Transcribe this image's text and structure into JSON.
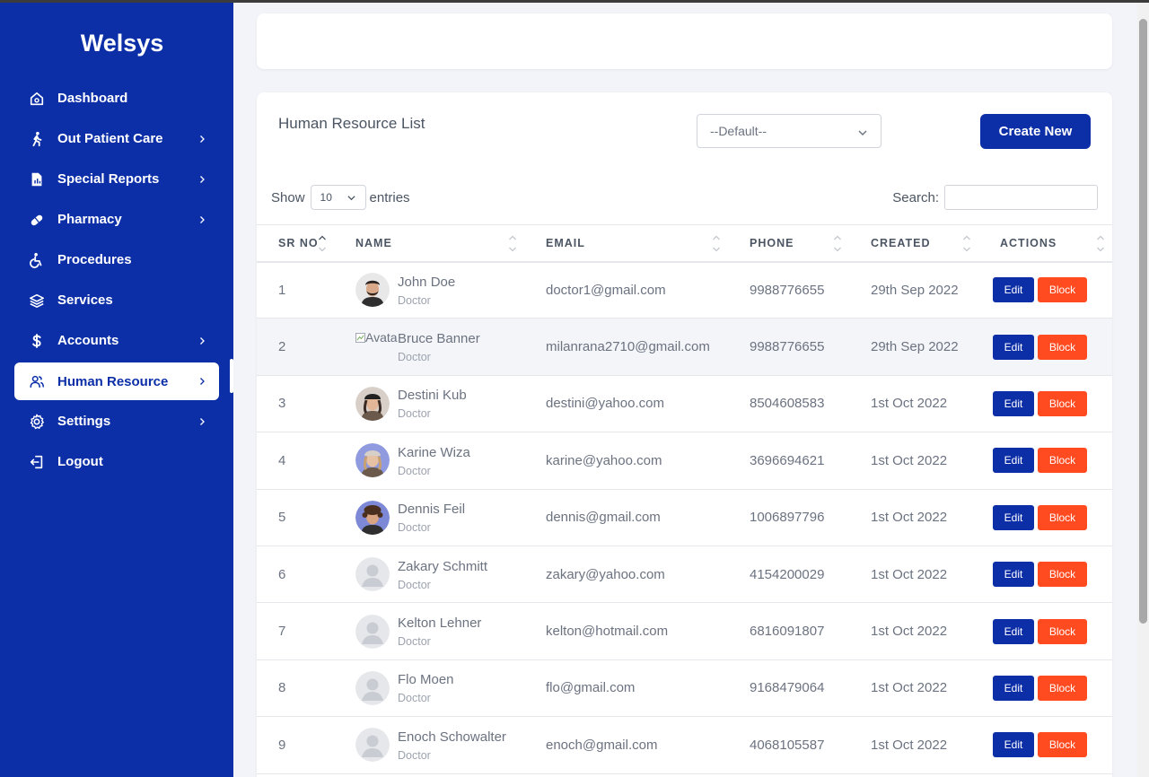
{
  "brand": "Welsys",
  "sidebar": {
    "items": [
      {
        "label": "Dashboard",
        "icon": "home-icon",
        "chevron": false
      },
      {
        "label": "Out Patient Care",
        "icon": "walking-person-icon",
        "chevron": true
      },
      {
        "label": "Special Reports",
        "icon": "report-file-icon",
        "chevron": true
      },
      {
        "label": "Pharmacy",
        "icon": "pill-icon",
        "chevron": true
      },
      {
        "label": "Procedures",
        "icon": "wheelchair-icon",
        "chevron": false
      },
      {
        "label": "Services",
        "icon": "layers-icon",
        "chevron": false
      },
      {
        "label": "Accounts",
        "icon": "dollar-icon",
        "chevron": true
      },
      {
        "label": "Human Resource",
        "icon": "users-icon",
        "chevron": true,
        "active": true
      },
      {
        "label": "Settings",
        "icon": "gear-icon",
        "chevron": true
      },
      {
        "label": "Logout",
        "icon": "logout-icon",
        "chevron": false
      }
    ]
  },
  "main": {
    "title": "Human Resource List",
    "filter": {
      "value": "--Default--"
    },
    "create_label": "Create New",
    "show_label": "Show",
    "entries_value": "10",
    "entries_label": "entries",
    "search_label": "Search:",
    "columns": [
      "SR NO",
      "NAME",
      "EMAIL",
      "PHONE",
      "CREATED",
      "ACTIONS"
    ],
    "edit_label": "Edit",
    "block_label": "Block",
    "rows": [
      {
        "sr": "1",
        "name": "John Doe",
        "role": "Doctor",
        "email": "doctor1@gmail.com",
        "phone": "9988776655",
        "created": "29th Sep 2022",
        "avatar": "photo-man-beard"
      },
      {
        "sr": "2",
        "name": "Bruce Banner",
        "role": "Doctor",
        "email": "milanrana2710@gmail.com",
        "phone": "9988776655",
        "created": "29th Sep 2022",
        "avatar": "broken-image",
        "avatar_alt": "Avatar"
      },
      {
        "sr": "3",
        "name": "Destini Kub",
        "role": "Doctor",
        "email": "destini@yahoo.com",
        "phone": "8504608583",
        "created": "1st Oct 2022",
        "avatar": "photo-woman-cap"
      },
      {
        "sr": "4",
        "name": "Karine Wiza",
        "role": "Doctor",
        "email": "karine@yahoo.com",
        "phone": "3696694621",
        "created": "1st Oct 2022",
        "avatar": "photo-woman-blue"
      },
      {
        "sr": "5",
        "name": "Dennis Feil",
        "role": "Doctor",
        "email": "dennis@gmail.com",
        "phone": "1006897796",
        "created": "1st Oct 2022",
        "avatar": "photo-man-curly"
      },
      {
        "sr": "6",
        "name": "Zakary Schmitt",
        "role": "Doctor",
        "email": "zakary@yahoo.com",
        "phone": "4154200029",
        "created": "1st Oct 2022",
        "avatar": "placeholder"
      },
      {
        "sr": "7",
        "name": "Kelton Lehner",
        "role": "Doctor",
        "email": "kelton@hotmail.com",
        "phone": "6816091807",
        "created": "1st Oct 2022",
        "avatar": "placeholder"
      },
      {
        "sr": "8",
        "name": "Flo Moen",
        "role": "Doctor",
        "email": "flo@gmail.com",
        "phone": "9168479064",
        "created": "1st Oct 2022",
        "avatar": "placeholder"
      },
      {
        "sr": "9",
        "name": "Enoch Schowalter",
        "role": "Doctor",
        "email": "enoch@gmail.com",
        "phone": "4068105587",
        "created": "1st Oct 2022",
        "avatar": "placeholder"
      }
    ]
  },
  "colors": {
    "primary": "#0c2fa8",
    "danger": "#ff4b1f",
    "background": "#f3f4f9"
  }
}
